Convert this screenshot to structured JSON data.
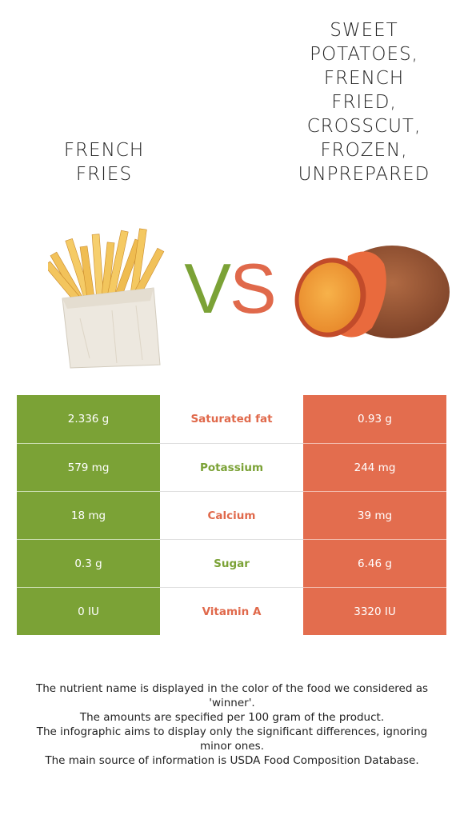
{
  "left_food": {
    "name": "FRENCH\nFRIES",
    "color": "#7ba236"
  },
  "right_food": {
    "name": "SWEET\nPOTATOES,\nFRENCH\nFRIED,\nCROSSCUT,\nFROZEN,\nUNPREPARED",
    "color": "#e36d4e"
  },
  "vs": {
    "v": "V",
    "s": "S"
  },
  "rows": [
    {
      "left": "2.336 g",
      "nutrient": "Saturated fat",
      "right": "0.93 g",
      "winner": "right"
    },
    {
      "left": "579 mg",
      "nutrient": "Potassium",
      "right": "244 mg",
      "winner": "left"
    },
    {
      "left": "18 mg",
      "nutrient": "Calcium",
      "right": "39 mg",
      "winner": "right"
    },
    {
      "left": "0.3 g",
      "nutrient": "Sugar",
      "right": "6.46 g",
      "winner": "left"
    },
    {
      "left": "0 IU",
      "nutrient": "Vitamin A",
      "right": "3320 IU",
      "winner": "right"
    }
  ],
  "footer": [
    "The nutrient name is displayed in the color of the food we considered as 'winner'.",
    "The amounts are specified per 100 gram of the product.",
    "The infographic aims to display only the significant differences, ignoring minor ones.",
    "The main source of information is USDA Food Composition Database."
  ]
}
